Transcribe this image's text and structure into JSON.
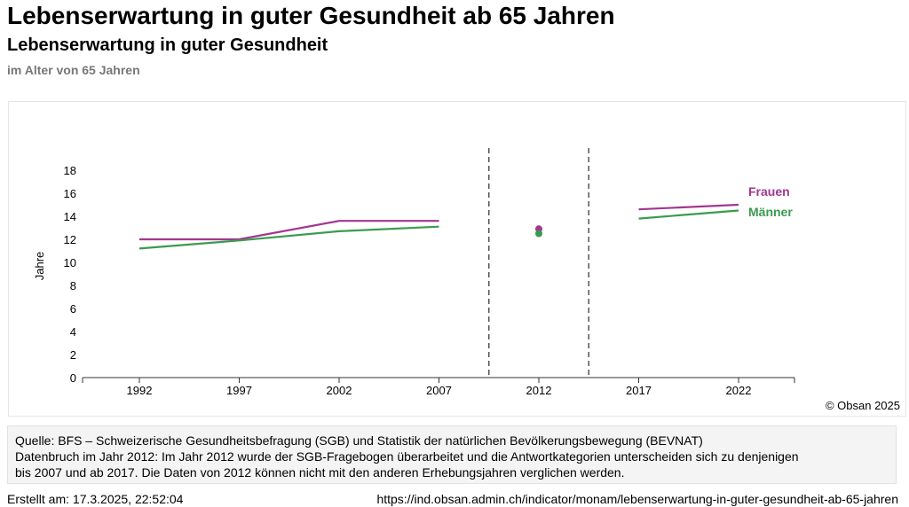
{
  "header": {
    "title": "Lebenserwartung in guter Gesundheit ab 65 Jahren"
  },
  "chart_data": {
    "type": "line",
    "title": "Lebenserwartung in guter Gesundheit",
    "subtitle": "im Alter von 65 Jahren",
    "xlabel": "",
    "ylabel": "Jahre",
    "categories": [
      "1992",
      "1997",
      "2002",
      "2007",
      "2012",
      "2017",
      "2022"
    ],
    "yticks": [
      "0",
      "2",
      "4",
      "6",
      "8",
      "10",
      "12",
      "14",
      "16",
      "18"
    ],
    "ylim": [
      0,
      18
    ],
    "grid": false,
    "legend": "right, labels at line ends",
    "series": [
      {
        "name": "Frauen",
        "color": "#a3368f",
        "values": [
          12.0,
          12.0,
          13.6,
          13.6,
          12.9,
          14.6,
          15.0
        ]
      },
      {
        "name": "Männer",
        "color": "#3a9b4f",
        "values": [
          11.2,
          11.9,
          12.7,
          13.1,
          12.5,
          13.8,
          14.5
        ]
      }
    ],
    "breaks_after": [
      "2007",
      "2012"
    ],
    "credit": "© Obsan 2025"
  },
  "note": {
    "lines": [
      "Quelle: BFS – Schweizerische Gesundheitsbefragung (SGB) und Statistik der natürlichen Bevölkerungsbewegung (BEVNAT)",
      "Datenbruch im Jahr 2012: Im Jahr 2012 wurde der SGB-Fragebogen überarbeitet und die Antwortkategorien unterscheiden sich zu denjenigen",
      "bis 2007 und ab 2017. Die Daten von 2012 können nicht mit den anderen Erhebungsjahren verglichen werden."
    ]
  },
  "footer": {
    "created": "Erstellt am: 17.3.2025, 22:52:04",
    "url": "https://ind.obsan.admin.ch/indicator/monam/lebenserwartung-in-guter-gesundheit-ab-65-jahren"
  }
}
